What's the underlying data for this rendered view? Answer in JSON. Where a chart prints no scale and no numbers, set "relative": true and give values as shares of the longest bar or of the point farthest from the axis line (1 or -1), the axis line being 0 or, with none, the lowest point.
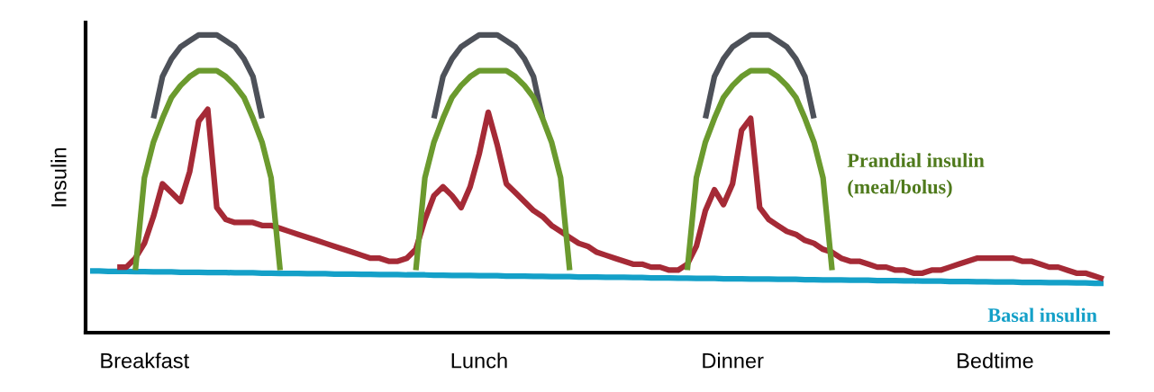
{
  "chart_data": {
    "type": "line",
    "relative": true,
    "ylabel": "Insulin",
    "tick_labels": "x",
    "grid": false,
    "legend": false,
    "marker": "none",
    "line_style": "solid",
    "categories": [
      null,
      null,
      null,
      null,
      null,
      null,
      "Breakfast",
      null,
      null,
      null,
      null,
      null,
      null,
      null,
      null,
      null,
      null,
      null,
      null,
      null,
      null,
      null,
      null,
      null,
      null,
      null,
      null,
      null,
      null,
      null,
      null,
      null,
      null,
      null,
      null,
      null,
      null,
      null,
      null,
      null,
      null,
      null,
      null,
      "Lunch",
      null,
      null,
      null,
      null,
      null,
      null,
      null,
      null,
      null,
      null,
      null,
      null,
      null,
      null,
      null,
      null,
      null,
      null,
      null,
      null,
      null,
      null,
      null,
      null,
      null,
      null,
      null,
      "Dinner",
      null,
      null,
      null,
      null,
      null,
      null,
      null,
      null,
      null,
      null,
      null,
      null,
      null,
      null,
      null,
      null,
      null,
      null,
      null,
      null,
      null,
      null,
      null,
      null,
      null,
      null,
      null,
      null,
      "Bedtime",
      null,
      null,
      null,
      null,
      null,
      null,
      null,
      null,
      null,
      null,
      null,
      null
    ],
    "series": [
      {
        "color": "#14a0c8",
        "name": "Basal insulin",
        "values": [
          0.207,
          0.207,
          0.206,
          0.206,
          0.206,
          0.205,
          0.205,
          0.204,
          0.204,
          0.204,
          0.203,
          0.203,
          0.203,
          0.202,
          0.202,
          0.202,
          0.201,
          0.201,
          0.201,
          0.2,
          0.2,
          0.199,
          0.199,
          0.199,
          0.198,
          0.198,
          0.198,
          0.197,
          0.197,
          0.197,
          0.196,
          0.196,
          0.195,
          0.195,
          0.195,
          0.194,
          0.194,
          0.194,
          0.193,
          0.193,
          0.192,
          0.192,
          0.192,
          0.191,
          0.191,
          0.191,
          0.19,
          0.19,
          0.19,
          0.189,
          0.189,
          0.188,
          0.188,
          0.188,
          0.187,
          0.187,
          0.187,
          0.186,
          0.186,
          0.186,
          0.185,
          0.185,
          0.184,
          0.184,
          0.184,
          0.183,
          0.183,
          0.182,
          0.182,
          0.182,
          0.181,
          0.181,
          0.181,
          0.18,
          0.18,
          0.18,
          0.179,
          0.179,
          0.179,
          0.178,
          0.178,
          0.177,
          0.177,
          0.177,
          0.176,
          0.176,
          0.176,
          0.175,
          0.175,
          0.175,
          0.174,
          0.174,
          0.173,
          0.173,
          0.173,
          0.172,
          0.172,
          0.172,
          0.171,
          0.171,
          0.17,
          0.17,
          0.17,
          0.169,
          0.169,
          0.169,
          0.168,
          0.168,
          0.168,
          0.167,
          0.167,
          0.166,
          0.166
        ]
      },
      {
        "color": "#a52a36",
        "values": [
          null,
          null,
          null,
          0.22,
          0.22,
          0.25,
          0.3,
          0.39,
          0.5,
          0.47,
          0.44,
          0.54,
          0.71,
          0.75,
          0.42,
          0.38,
          0.37,
          0.37,
          0.37,
          0.36,
          0.36,
          0.35,
          0.34,
          0.33,
          0.32,
          0.31,
          0.3,
          0.29,
          0.28,
          0.27,
          0.26,
          0.25,
          0.25,
          0.24,
          0.24,
          0.25,
          0.28,
          0.38,
          0.46,
          0.49,
          0.46,
          0.42,
          0.49,
          0.6,
          0.74,
          0.63,
          0.5,
          0.47,
          0.44,
          0.41,
          0.39,
          0.36,
          0.34,
          0.32,
          0.3,
          0.29,
          0.27,
          0.26,
          0.25,
          0.24,
          0.23,
          0.23,
          0.22,
          0.22,
          0.21,
          0.21,
          0.23,
          0.29,
          0.41,
          0.48,
          0.43,
          0.5,
          0.68,
          0.72,
          0.42,
          0.38,
          0.36,
          0.34,
          0.33,
          0.31,
          0.3,
          0.28,
          0.27,
          0.25,
          0.24,
          0.24,
          0.23,
          0.22,
          0.22,
          0.21,
          0.21,
          0.2,
          0.2,
          0.21,
          0.21,
          0.22,
          0.23,
          0.24,
          0.25,
          0.25,
          0.25,
          0.25,
          0.25,
          0.24,
          0.24,
          0.23,
          0.22,
          0.22,
          0.21,
          0.2,
          0.2,
          0.19,
          0.18
        ]
      },
      {
        "color": "#4d5159",
        "values": [
          null,
          null,
          null,
          null,
          null,
          null,
          null,
          0.72,
          0.86,
          0.92,
          0.96,
          0.98,
          1.0,
          1.0,
          1.0,
          0.98,
          0.96,
          0.92,
          0.86,
          0.72,
          null,
          null,
          null,
          null,
          null,
          null,
          null,
          null,
          null,
          null,
          null,
          null,
          null,
          null,
          null,
          null,
          null,
          null,
          null,
          null,
          null,
          null,
          null,
          null,
          null,
          null,
          null,
          null,
          null,
          null,
          null,
          null,
          null,
          null,
          null,
          null,
          null,
          null,
          null,
          null,
          null,
          null,
          null,
          null,
          null,
          null,
          null,
          null,
          null,
          null,
          null,
          null,
          null,
          null,
          null,
          null,
          null,
          null,
          null,
          null,
          null,
          null,
          null,
          null,
          null,
          null,
          null,
          null,
          null,
          null,
          null,
          null,
          null,
          null,
          null,
          null,
          null,
          null,
          null,
          null,
          null,
          null,
          null,
          null,
          null,
          null,
          null,
          null,
          null,
          null,
          null,
          null,
          null
        ]
      },
      {
        "color": "#4d5159",
        "values": [
          null,
          null,
          null,
          null,
          null,
          null,
          null,
          null,
          null,
          null,
          null,
          null,
          null,
          null,
          null,
          null,
          null,
          null,
          null,
          null,
          null,
          null,
          null,
          null,
          null,
          null,
          null,
          null,
          null,
          null,
          null,
          null,
          null,
          null,
          null,
          null,
          null,
          null,
          0.72,
          0.86,
          0.92,
          0.96,
          0.98,
          1.0,
          1.0,
          1.0,
          0.98,
          0.96,
          0.92,
          0.86,
          0.72,
          null,
          null,
          null,
          null,
          null,
          null,
          null,
          null,
          null,
          null,
          null,
          null,
          null,
          null,
          null,
          null,
          null,
          null,
          null,
          null,
          null,
          null,
          null,
          null,
          null,
          null,
          null,
          null,
          null,
          null,
          null,
          null,
          null,
          null,
          null,
          null,
          null,
          null,
          null,
          null,
          null,
          null,
          null,
          null,
          null,
          null,
          null,
          null,
          null,
          null,
          null,
          null,
          null,
          null,
          null,
          null,
          null,
          null,
          null,
          null,
          null,
          null
        ]
      },
      {
        "color": "#4d5159",
        "values": [
          null,
          null,
          null,
          null,
          null,
          null,
          null,
          null,
          null,
          null,
          null,
          null,
          null,
          null,
          null,
          null,
          null,
          null,
          null,
          null,
          null,
          null,
          null,
          null,
          null,
          null,
          null,
          null,
          null,
          null,
          null,
          null,
          null,
          null,
          null,
          null,
          null,
          null,
          null,
          null,
          null,
          null,
          null,
          null,
          null,
          null,
          null,
          null,
          null,
          null,
          null,
          null,
          null,
          null,
          null,
          null,
          null,
          null,
          null,
          null,
          null,
          null,
          null,
          null,
          null,
          null,
          null,
          null,
          0.72,
          0.86,
          0.92,
          0.96,
          0.98,
          1.0,
          1.0,
          1.0,
          0.98,
          0.96,
          0.92,
          0.86,
          0.72,
          null,
          null,
          null,
          null,
          null,
          null,
          null,
          null,
          null,
          null,
          null,
          null,
          null,
          null,
          null,
          null,
          null,
          null,
          null,
          null,
          null,
          null,
          null,
          null,
          null,
          null,
          null,
          null,
          null,
          null,
          null,
          null
        ]
      },
      {
        "color": "#6b9a2e",
        "values": [
          null,
          null,
          null,
          null,
          null,
          0.21,
          0.52,
          0.64,
          0.72,
          0.79,
          0.83,
          0.86,
          0.88,
          0.88,
          0.88,
          0.86,
          0.83,
          0.79,
          0.72,
          0.64,
          0.52,
          0.21,
          null,
          null,
          null,
          null,
          null,
          null,
          null,
          null,
          null,
          null,
          null,
          null,
          null,
          null,
          null,
          null,
          null,
          null,
          null,
          null,
          null,
          null,
          null,
          null,
          null,
          null,
          null,
          null,
          null,
          null,
          null,
          null,
          null,
          null,
          null,
          null,
          null,
          null,
          null,
          null,
          null,
          null,
          null,
          null,
          null,
          null,
          null,
          null,
          null,
          null,
          null,
          null,
          null,
          null,
          null,
          null,
          null,
          null,
          null,
          null,
          null,
          null,
          null,
          null,
          null,
          null,
          null,
          null,
          null,
          null,
          null,
          null,
          null,
          null,
          null,
          null,
          null,
          null,
          null,
          null,
          null,
          null,
          null,
          null,
          null,
          null,
          null,
          null,
          null,
          null,
          null
        ]
      },
      {
        "color": "#6b9a2e",
        "values": [
          null,
          null,
          null,
          null,
          null,
          null,
          null,
          null,
          null,
          null,
          null,
          null,
          null,
          null,
          null,
          null,
          null,
          null,
          null,
          null,
          null,
          null,
          null,
          null,
          null,
          null,
          null,
          null,
          null,
          null,
          null,
          null,
          null,
          null,
          null,
          null,
          0.21,
          0.52,
          0.64,
          0.72,
          0.79,
          0.83,
          0.86,
          0.88,
          0.88,
          0.88,
          0.88,
          0.86,
          0.83,
          0.79,
          0.72,
          0.64,
          0.52,
          0.21,
          null,
          null,
          null,
          null,
          null,
          null,
          null,
          null,
          null,
          null,
          null,
          null,
          null,
          null,
          null,
          null,
          null,
          null,
          null,
          null,
          null,
          null,
          null,
          null,
          null,
          null,
          null,
          null,
          null,
          null,
          null,
          null,
          null,
          null,
          null,
          null,
          null,
          null,
          null,
          null,
          null,
          null,
          null,
          null,
          null,
          null,
          null,
          null,
          null,
          null,
          null,
          null,
          null,
          null,
          null,
          null,
          null,
          null,
          null
        ]
      },
      {
        "color": "#6b9a2e",
        "name": "Prandial insulin\n(meal/bolus)",
        "values": [
          null,
          null,
          null,
          null,
          null,
          null,
          null,
          null,
          null,
          null,
          null,
          null,
          null,
          null,
          null,
          null,
          null,
          null,
          null,
          null,
          null,
          null,
          null,
          null,
          null,
          null,
          null,
          null,
          null,
          null,
          null,
          null,
          null,
          null,
          null,
          null,
          null,
          null,
          null,
          null,
          null,
          null,
          null,
          null,
          null,
          null,
          null,
          null,
          null,
          null,
          null,
          null,
          null,
          null,
          null,
          null,
          null,
          null,
          null,
          null,
          null,
          null,
          null,
          null,
          null,
          null,
          0.21,
          0.52,
          0.64,
          0.72,
          0.79,
          0.83,
          0.86,
          0.88,
          0.88,
          0.88,
          0.86,
          0.83,
          0.79,
          0.72,
          0.64,
          0.52,
          0.21,
          null,
          null,
          null,
          null,
          null,
          null,
          null,
          null,
          null,
          null,
          null,
          null,
          null,
          null,
          null,
          null,
          null,
          null,
          null,
          null,
          null,
          null,
          null,
          null,
          null,
          null,
          null,
          null,
          null,
          null
        ]
      }
    ]
  }
}
